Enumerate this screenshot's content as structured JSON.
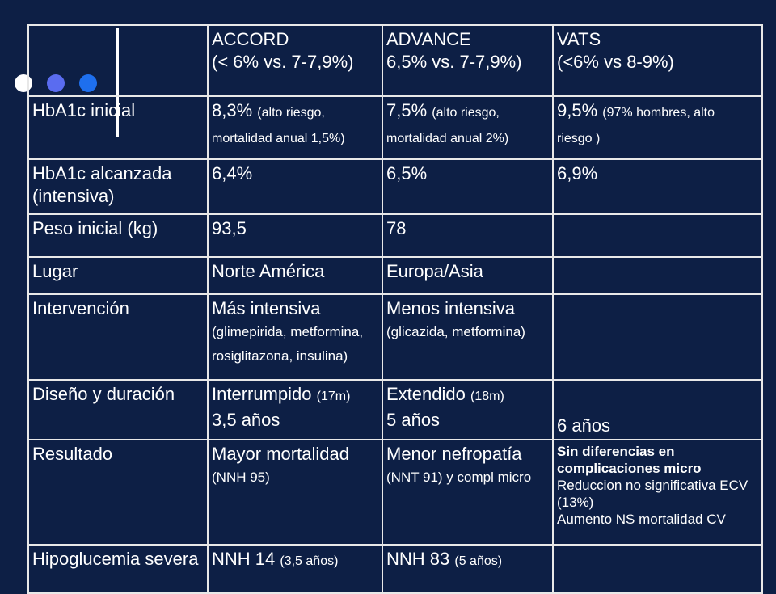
{
  "columns": [
    {
      "name": "ACCORD",
      "target": "(< 6% vs. 7-7,9%)"
    },
    {
      "name": "ADVANCE",
      "target": "6,5% vs. 7-7,9%)"
    },
    {
      "name": "VATS",
      "target": "(<6% vs 8-9%)"
    }
  ],
  "rows": {
    "hba1c_inicial": {
      "label": "HbA1c inicial",
      "accord": {
        "value": "8,3%",
        "note": "(alto riesgo,",
        "note2": "mortalidad anual 1,5%)"
      },
      "advance": {
        "value": "7,5%",
        "note": "(alto riesgo,",
        "note2": "mortalidad anual 2%)"
      },
      "vats": {
        "value": "9,5%",
        "note": "(97% hombres, alto",
        "note2": "riesgo )"
      }
    },
    "hba1c_alcanzada": {
      "label": "HbA1c alcanzada (intensiva)",
      "accord": "6,4%",
      "advance": "6,5%",
      "vats": "6,9%"
    },
    "peso": {
      "label": "Peso inicial (kg)",
      "accord": "93,5",
      "advance": "78",
      "vats": ""
    },
    "lugar": {
      "label": "Lugar",
      "accord": "Norte América",
      "advance": "Europa/Asia",
      "vats": ""
    },
    "intervencion": {
      "label": "Intervención",
      "accord": {
        "main": "Más intensiva",
        "detail": "(glimepirida, metformina, rosiglitazona, insulina)"
      },
      "advance": {
        "main": "Menos intensiva",
        "detail": "(glicazida, metformina)"
      },
      "vats": ""
    },
    "diseno": {
      "label": "Diseño y duración",
      "accord": {
        "main": "Interrumpido",
        "detail": "(17m)",
        "duration": "3,5 años"
      },
      "advance": {
        "main": "Extendido",
        "detail": "(18m)",
        "duration": "5 años"
      },
      "vats": {
        "duration": "6 años"
      }
    },
    "resultado": {
      "label": "Resultado",
      "accord": {
        "main": "Mayor mortalidad",
        "detail": "(NNH 95)"
      },
      "advance": {
        "main": "Menor nefropatía",
        "detail": "(NNT 91) y compl micro"
      },
      "vats": {
        "bold": "Sin diferencias en complicaciones micro",
        "line1": "Reduccion no significativa ECV (13%)",
        "line2": "Aumento NS mortalidad CV"
      }
    },
    "hipoglucemia": {
      "label": "Hipoglucemia severa",
      "accord": {
        "main": "NNH 14",
        "detail": "(3,5 años)"
      },
      "advance": {
        "main": "NNH 83",
        "detail": "(5 años)"
      },
      "vats": ""
    }
  },
  "colors": {
    "background": "#0d1f45",
    "header_text": "#f6c21b",
    "body_text": "#ffffff",
    "grid": "#e8e8e8"
  }
}
